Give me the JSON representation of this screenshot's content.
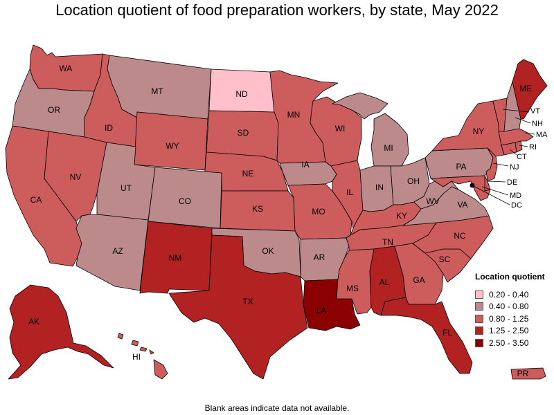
{
  "title": "Location quotient of food preparation workers, by state, May 2022",
  "footnote": "Blank areas indicate data not available.",
  "legend": {
    "title": "Location quotient",
    "items": [
      {
        "label": "0.20 - 0.40",
        "color": "#ffc0cb"
      },
      {
        "label": "0.40 - 0.80",
        "color": "#bc8a8a"
      },
      {
        "label": "0.80 - 1.25",
        "color": "#cd5c5c"
      },
      {
        "label": "1.25 - 2.50",
        "color": "#b22222"
      },
      {
        "label": "2.50 - 3.50",
        "color": "#8b0000"
      }
    ]
  },
  "states": {
    "WA": {
      "label": "WA",
      "class": "0.80 - 1.25"
    },
    "OR": {
      "label": "OR",
      "class": "0.40 - 0.80"
    },
    "CA": {
      "label": "CA",
      "class": "0.80 - 1.25"
    },
    "ID": {
      "label": "ID",
      "class": "0.80 - 1.25"
    },
    "NV": {
      "label": "NV",
      "class": "0.80 - 1.25"
    },
    "MT": {
      "label": "MT",
      "class": "0.40 - 0.80"
    },
    "WY": {
      "label": "WY",
      "class": "0.80 - 1.25"
    },
    "UT": {
      "label": "UT",
      "class": "0.40 - 0.80"
    },
    "AZ": {
      "label": "AZ",
      "class": "0.40 - 0.80"
    },
    "CO": {
      "label": "CO",
      "class": "0.40 - 0.80"
    },
    "NM": {
      "label": "NM",
      "class": "1.25 - 2.50"
    },
    "ND": {
      "label": "ND",
      "class": "0.20 - 0.40"
    },
    "SD": {
      "label": "SD",
      "class": "0.80 - 1.25"
    },
    "NE": {
      "label": "NE",
      "class": "0.80 - 1.25"
    },
    "KS": {
      "label": "KS",
      "class": "0.80 - 1.25"
    },
    "OK": {
      "label": "OK",
      "class": "0.40 - 0.80"
    },
    "TX": {
      "label": "TX",
      "class": "1.25 - 2.50"
    },
    "MN": {
      "label": "MN",
      "class": "0.80 - 1.25"
    },
    "IA": {
      "label": "IA",
      "class": "0.40 - 0.80"
    },
    "MO": {
      "label": "MO",
      "class": "0.80 - 1.25"
    },
    "AR": {
      "label": "AR",
      "class": "0.40 - 0.80"
    },
    "LA": {
      "label": "LA",
      "class": "2.50 - 3.50"
    },
    "WI": {
      "label": "WI",
      "class": "0.80 - 1.25"
    },
    "IL": {
      "label": "IL",
      "class": "0.80 - 1.25"
    },
    "MI": {
      "label": "MI",
      "class": "0.40 - 0.80"
    },
    "IN": {
      "label": "IN",
      "class": "0.40 - 0.80"
    },
    "OH": {
      "label": "OH",
      "class": "0.40 - 0.80"
    },
    "KY": {
      "label": "KY",
      "class": "0.80 - 1.25"
    },
    "TN": {
      "label": "TN",
      "class": "0.80 - 1.25"
    },
    "MS": {
      "label": "MS",
      "class": "0.80 - 1.25"
    },
    "AL": {
      "label": "AL",
      "class": "1.25 - 2.50"
    },
    "GA": {
      "label": "GA",
      "class": "0.80 - 1.25"
    },
    "FL": {
      "label": "FL",
      "class": "1.25 - 2.50"
    },
    "SC": {
      "label": "SC",
      "class": "0.80 - 1.25"
    },
    "NC": {
      "label": "NC",
      "class": "0.80 - 1.25"
    },
    "VA": {
      "label": "VA",
      "class": "0.40 - 0.80"
    },
    "WV": {
      "label": "WV",
      "class": "0.40 - 0.80"
    },
    "PA": {
      "label": "PA",
      "class": "0.40 - 0.80"
    },
    "NY": {
      "label": "NY",
      "class": "0.80 - 1.25"
    },
    "NJ": {
      "label": "NJ",
      "class": "0.80 - 1.25"
    },
    "DE": {
      "label": "DE",
      "class": "0.80 - 1.25"
    },
    "MD": {
      "label": "MD",
      "class": "0.80 - 1.25"
    },
    "DC": {
      "label": "DC",
      "class": "0.80 - 1.25"
    },
    "CT": {
      "label": "CT",
      "class": "0.80 - 1.25"
    },
    "RI": {
      "label": "RI",
      "class": "0.80 - 1.25"
    },
    "MA": {
      "label": "MA",
      "class": "0.80 - 1.25"
    },
    "VT": {
      "label": "VT",
      "class": "0.80 - 1.25"
    },
    "NH": {
      "label": "NH",
      "class": "0.40 - 0.80"
    },
    "ME": {
      "label": "ME",
      "class": "1.25 - 2.50"
    },
    "AK": {
      "label": "AK",
      "class": "1.25 - 2.50"
    },
    "HI": {
      "label": "HI",
      "class": "0.80 - 1.25"
    },
    "PR": {
      "label": "PR",
      "class": "0.80 - 1.25"
    }
  }
}
